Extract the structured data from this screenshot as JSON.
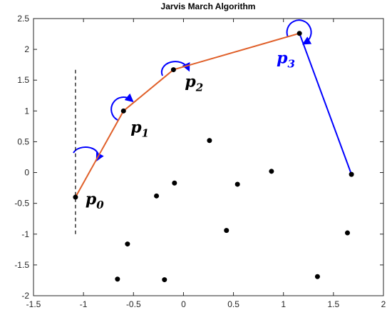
{
  "chart_data": {
    "type": "scatter",
    "title": "Jarvis March Algorithm",
    "xlim": [
      -1.5,
      2
    ],
    "ylim": [
      -2,
      2.5
    ],
    "xticks": [
      -1.5,
      -1,
      -0.5,
      0,
      0.5,
      1,
      1.5,
      2
    ],
    "yticks": [
      -2,
      -1.5,
      -1,
      -0.5,
      0,
      0.5,
      1,
      1.5,
      2,
      2.5
    ],
    "points": {
      "color": "#000000",
      "x": [
        -1.08,
        -0.6,
        -0.1,
        1.16,
        1.68,
        0.26,
        0.88,
        -0.09,
        -0.27,
        0.54,
        0.43,
        1.64,
        -0.56,
        -0.66,
        -0.19,
        1.34
      ],
      "y": [
        -0.4,
        1.0,
        1.67,
        2.26,
        -0.03,
        0.52,
        0.02,
        -0.17,
        -0.38,
        -0.19,
        -0.94,
        -0.98,
        -1.16,
        -1.73,
        -1.74,
        -1.69
      ]
    },
    "hull_path": {
      "color": "#e0602a",
      "x": [
        -1.08,
        -0.6,
        -0.1,
        1.16
      ],
      "y": [
        -0.4,
        1.0,
        1.67,
        2.26
      ]
    },
    "final_edge": {
      "color": "#0000ff",
      "x": [
        1.16,
        1.68
      ],
      "y": [
        2.26,
        -0.03
      ]
    },
    "dashed_line": {
      "color": "#000000",
      "x": [
        -1.08,
        -1.08
      ],
      "y": [
        -1,
        1.7
      ]
    },
    "hull_labels": [
      {
        "base": "p",
        "subscript": "0",
        "color": "#000000"
      },
      {
        "base": "p",
        "subscript": "1",
        "color": "#000000"
      },
      {
        "base": "p",
        "subscript": "2",
        "color": "#000000"
      },
      {
        "base": "p",
        "subscript": "3",
        "color": "#0000ff"
      }
    ]
  }
}
